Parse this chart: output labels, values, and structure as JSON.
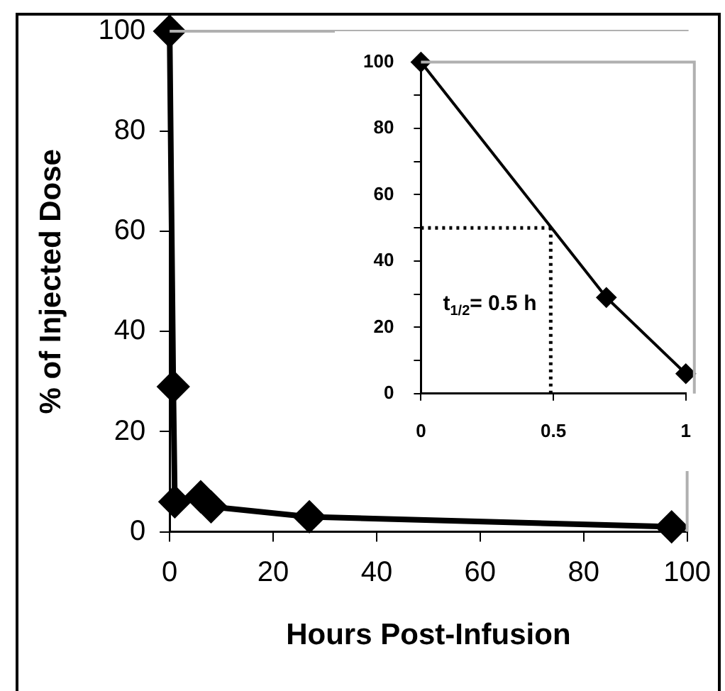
{
  "chart_data": [
    {
      "type": "line",
      "xlabel": "Hours Post-Infusion",
      "ylabel": "% of Injected Dose",
      "x": [
        0,
        0.7,
        1,
        6,
        8,
        27,
        97
      ],
      "series": [
        {
          "color": "#000000",
          "values": [
            100,
            29,
            6,
            7,
            5,
            3,
            1
          ]
        }
      ],
      "xlim": [
        0,
        100
      ],
      "ylim": [
        0,
        100
      ],
      "xticks": [
        0,
        20,
        40,
        60,
        80,
        100
      ],
      "yticks": [
        0,
        20,
        40,
        60,
        80,
        100
      ],
      "grid": false,
      "legend": false,
      "marker": "diamond",
      "line_style": "solid"
    },
    {
      "type": "line",
      "x": [
        0,
        0.7,
        1
      ],
      "series": [
        {
          "color": "#000000",
          "values": [
            100,
            29,
            6
          ]
        }
      ],
      "ref_lines": [
        {
          "axis": "y",
          "value": 50,
          "color": "#000000",
          "line_style": "dotted"
        },
        {
          "axis": "x",
          "value": 0.49,
          "color": "#000000",
          "line_style": "dotted"
        }
      ],
      "xlim": [
        0,
        1
      ],
      "ylim": [
        0,
        100
      ],
      "xticks": [
        0,
        0.5,
        1
      ],
      "yticks": [
        0,
        {
          "value": 10,
          "label": null
        },
        20,
        {
          "value": 30,
          "label": null
        },
        40,
        {
          "value": 50,
          "label": null
        },
        60,
        {
          "value": 70,
          "label": null
        },
        80,
        {
          "value": 90,
          "label": null
        },
        100
      ],
      "annotations": [
        "t$_{1/2}$= 0.5 h"
      ],
      "grid": false,
      "legend": false,
      "marker": "diamond",
      "line_style": "solid"
    }
  ]
}
